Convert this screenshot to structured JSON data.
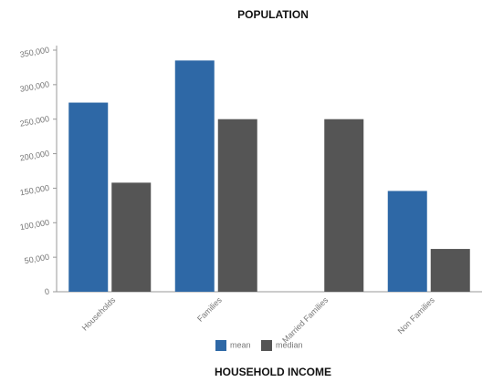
{
  "chart_data": {
    "type": "bar",
    "title": "POPULATION",
    "subtitle": "HOUSEHOLD INCOME",
    "categories": [
      "Households",
      "Families",
      "Married Families",
      "Non Families"
    ],
    "series": [
      {
        "name": "mean",
        "color": "#2e68a6",
        "values": [
          274000,
          335000,
          null,
          146000
        ]
      },
      {
        "name": "median",
        "color": "#555555",
        "values": [
          158000,
          250000,
          250000,
          62000
        ]
      }
    ],
    "ylim": [
      0,
      350000
    ],
    "yticks": [
      0,
      {
        "value": 50000,
        "label": "50,000"
      },
      {
        "value": 100000,
        "label": "100,000"
      },
      {
        "value": 150000,
        "label": "150,000"
      },
      {
        "value": 200000,
        "label": "200,000"
      },
      {
        "value": 250000,
        "label": "250,000"
      },
      {
        "value": 300000,
        "label": "300,000"
      },
      {
        "value": 350000,
        "label": "350,000"
      }
    ]
  }
}
